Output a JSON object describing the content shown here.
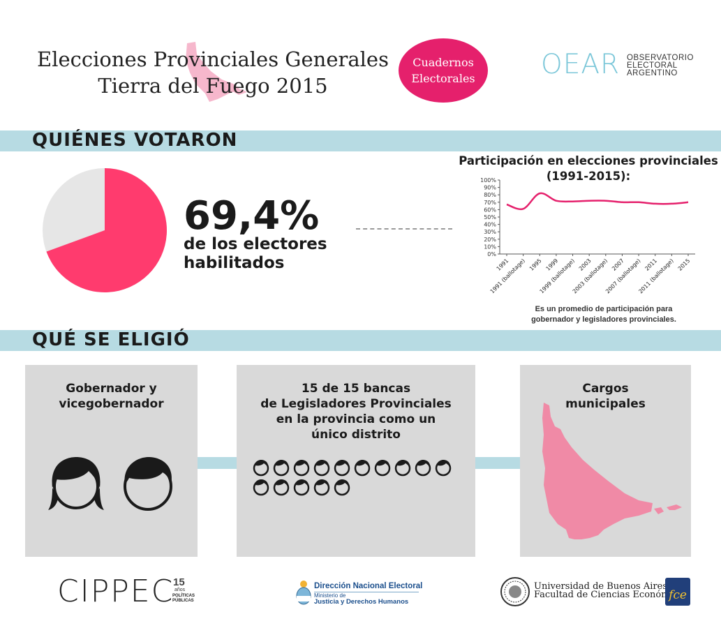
{
  "header": {
    "title_line1": "Elecciones Provinciales Generales",
    "title_line2": "Tierra del Fuego 2015",
    "badge_line1": "Cuadernos",
    "badge_line2": "Electorales",
    "oear_logo": "OEAR",
    "oear_line1": "OBSERVATORIO",
    "oear_line2": "ELECTORAL",
    "oear_line3": "ARGENTINO"
  },
  "section1": {
    "title": "QUIÉNES VOTARON",
    "turnout_value": "69,4%",
    "turnout_fraction": 0.694,
    "turnout_label_line1": "de los electores",
    "turnout_label_line2": "habilitados"
  },
  "chart_data": {
    "type": "line",
    "title_line1": "Participación en elecciones provinciales",
    "title_line2": "(1991-2015):",
    "categories": [
      "1991",
      "1991 (ballotage)",
      "1995",
      "1999",
      "1999 (ballotage)",
      "2003",
      "2003 (ballotage)",
      "2007",
      "2007 (ballotage)",
      "2011",
      "2011 (ballotage)",
      "2015"
    ],
    "values": [
      67,
      61,
      82,
      72,
      71,
      72,
      72,
      70,
      70,
      68,
      68,
      70
    ],
    "y_ticks": [
      "0%",
      "10%",
      "20%",
      "30%",
      "40%",
      "50%",
      "60%",
      "70%",
      "80%",
      "90%",
      "100%"
    ],
    "ylim": [
      0,
      100
    ],
    "note_line1": "Es un promedio de participación para",
    "note_line2": "gobernador y legisladores provinciales.",
    "color": "#e5206c"
  },
  "section2": {
    "title": "QUÉ SE ELIGIÓ",
    "box1_line1": "Gobernador y",
    "box1_line2": "vicegobernador",
    "box2_line1": "15 de 15 bancas",
    "box2_line2": "de Legisladores Provinciales",
    "box2_line3": "en la provincia como un",
    "box2_line4": "único distrito",
    "seats_total": 15,
    "box3_line1": "Cargos",
    "box3_line2": "municipales"
  },
  "footer": {
    "cippec": "CIPPEC",
    "cippec_years": "15",
    "cippec_years_label": "años",
    "cippec_tag1": "POLÍTICAS",
    "cippec_tag2": "PÚBLICAS",
    "dne_title": "Dirección Nacional Electoral",
    "dne_sub1": "Ministerio de",
    "dne_sub2": "Justicia y Derechos Humanos",
    "uba_line1": "Universidad de Buenos Aires",
    "uba_line2": "Facultad de Ciencias Económicas",
    "fce_mark": "fce"
  },
  "colors": {
    "accent": "#e5206c",
    "band": "#b7dbe3",
    "box": "#d9d9d9",
    "pie_rest": "#e6e6e6"
  }
}
